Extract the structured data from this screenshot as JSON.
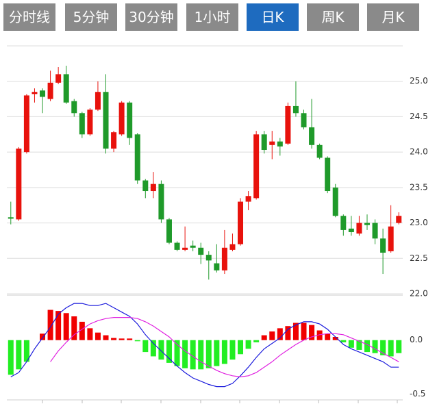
{
  "tabs": [
    {
      "label": "分时线",
      "active": false
    },
    {
      "label": "5分钟",
      "active": false
    },
    {
      "label": "30分钟",
      "active": false
    },
    {
      "label": "1小时",
      "active": false
    },
    {
      "label": "日K",
      "active": true
    },
    {
      "label": "周K",
      "active": false
    },
    {
      "label": "月K",
      "active": false
    }
  ],
  "chart_data": [
    {
      "type": "candlestick",
      "up_color": "#e8120c",
      "down_color": "#1f9a2a",
      "grid": true,
      "ylim": [
        22,
        25.5
      ],
      "yticks": [
        {
          "value": 22,
          "label": "22.0"
        },
        22.5,
        {
          "value": 23,
          "label": "23.0"
        },
        23.5,
        {
          "value": 24,
          "label": "24.0"
        },
        24.5,
        {
          "value": 25,
          "label": "25.0"
        }
      ],
      "open": [
        23.08,
        23.05,
        24.0,
        24.82,
        24.87,
        24.75,
        24.98,
        25.1,
        24.72,
        24.55,
        24.25,
        24.6,
        24.85,
        24.05,
        24.25,
        24.7,
        24.25,
        23.6,
        23.45,
        23.55,
        23.05,
        22.72,
        22.62,
        22.68,
        22.65,
        22.55,
        22.43,
        22.33,
        22.62,
        22.7,
        23.3,
        23.35,
        24.25,
        24.1,
        24.15,
        24.12,
        24.65,
        24.55,
        24.35,
        24.1,
        23.92,
        23.5,
        23.1,
        22.92,
        22.85,
        23.0,
        23.0,
        22.78,
        22.6,
        23.0
      ],
      "close": [
        23.06,
        24.05,
        24.8,
        24.85,
        24.78,
        24.98,
        25.1,
        24.7,
        24.55,
        24.25,
        24.6,
        24.85,
        24.05,
        24.28,
        24.7,
        24.2,
        23.6,
        23.45,
        23.55,
        23.05,
        22.72,
        22.62,
        22.65,
        22.65,
        22.55,
        22.47,
        22.33,
        22.65,
        22.7,
        23.3,
        23.38,
        24.25,
        24.03,
        24.15,
        24.08,
        24.65,
        24.55,
        24.35,
        24.1,
        23.92,
        23.45,
        23.1,
        22.9,
        22.87,
        23.0,
        22.97,
        22.78,
        22.58,
        22.95,
        23.1
      ],
      "high": [
        23.3,
        24.07,
        24.82,
        24.9,
        24.9,
        25.15,
        25.2,
        25.22,
        24.75,
        24.57,
        24.62,
        25.0,
        25.1,
        24.3,
        24.72,
        24.72,
        24.27,
        23.62,
        23.72,
        23.6,
        23.07,
        22.74,
        22.95,
        22.75,
        22.72,
        22.6,
        22.7,
        22.9,
        22.85,
        23.35,
        23.45,
        24.3,
        24.3,
        24.3,
        24.2,
        24.7,
        25.0,
        24.6,
        24.75,
        24.12,
        23.94,
        23.55,
        23.12,
        23.1,
        23.1,
        23.12,
        23.05,
        22.92,
        23.25,
        23.15
      ],
      "low": [
        22.98,
        23.03,
        23.98,
        24.7,
        24.55,
        24.72,
        24.96,
        24.68,
        24.5,
        24.2,
        24.23,
        24.58,
        23.98,
        24.0,
        24.23,
        24.1,
        23.55,
        23.35,
        23.35,
        23.0,
        22.7,
        22.6,
        22.6,
        22.6,
        22.42,
        22.2,
        22.3,
        22.28,
        22.6,
        22.68,
        23.18,
        23.33,
        23.98,
        23.9,
        23.95,
        24.1,
        24.5,
        24.32,
        24.05,
        23.9,
        23.42,
        23.08,
        22.82,
        22.82,
        22.82,
        22.9,
        22.7,
        22.28,
        22.58,
        22.98
      ]
    },
    {
      "type": "macd",
      "up_color": "#f00000",
      "down_color": "#22ee22",
      "ylim": [
        -0.54,
        0.41
      ],
      "yticks": [
        {
          "value": 0,
          "label": "0.0"
        },
        -0.5
      ],
      "series": [
        {
          "type": "bar",
          "values": [
            -0.32,
            -0.27,
            -0.2,
            0.0,
            0.06,
            0.28,
            0.27,
            0.25,
            0.22,
            0.17,
            0.11,
            0.07,
            0.045,
            0.02,
            0.015,
            0.015,
            -0.01,
            -0.11,
            -0.15,
            -0.18,
            -0.21,
            -0.24,
            -0.26,
            -0.27,
            -0.27,
            -0.26,
            -0.24,
            -0.22,
            -0.18,
            -0.13,
            -0.08,
            -0.02,
            0.045,
            0.08,
            0.11,
            0.13,
            0.16,
            0.16,
            0.14,
            0.09,
            0.06,
            0.03,
            -0.02,
            -0.07,
            -0.09,
            -0.11,
            -0.12,
            -0.14,
            -0.15,
            -0.12
          ]
        },
        {
          "type": "line",
          "color": "#1a1adc",
          "values": [
            -0.34,
            -0.3,
            -0.2,
            -0.08,
            0.02,
            0.12,
            0.24,
            0.3,
            0.34,
            0.34,
            0.32,
            0.32,
            0.34,
            0.3,
            0.26,
            0.22,
            0.15,
            0.05,
            -0.03,
            -0.1,
            -0.17,
            -0.24,
            -0.3,
            -0.35,
            -0.38,
            -0.41,
            -0.43,
            -0.43,
            -0.4,
            -0.33,
            -0.25,
            -0.16,
            -0.08,
            -0.03,
            0.02,
            0.1,
            0.14,
            0.17,
            0.17,
            0.15,
            0.1,
            0.03,
            -0.04,
            -0.08,
            -0.11,
            -0.14,
            -0.17,
            -0.2,
            -0.25,
            -0.25
          ]
        },
        {
          "type": "line",
          "color": "#e020e0",
          "values": [
            null,
            null,
            null,
            null,
            null,
            -0.2,
            -0.1,
            -0.02,
            0.05,
            0.1,
            0.15,
            0.18,
            0.2,
            0.21,
            0.21,
            0.21,
            0.2,
            0.17,
            0.13,
            0.08,
            0.03,
            -0.04,
            -0.1,
            -0.15,
            -0.2,
            -0.24,
            -0.28,
            -0.31,
            -0.33,
            -0.34,
            -0.33,
            -0.3,
            -0.25,
            -0.2,
            -0.14,
            -0.09,
            -0.04,
            0.0,
            0.03,
            0.05,
            0.06,
            0.06,
            0.05,
            0.02,
            -0.01,
            -0.04,
            -0.08,
            -0.12,
            -0.16,
            -0.2
          ]
        }
      ]
    }
  ]
}
